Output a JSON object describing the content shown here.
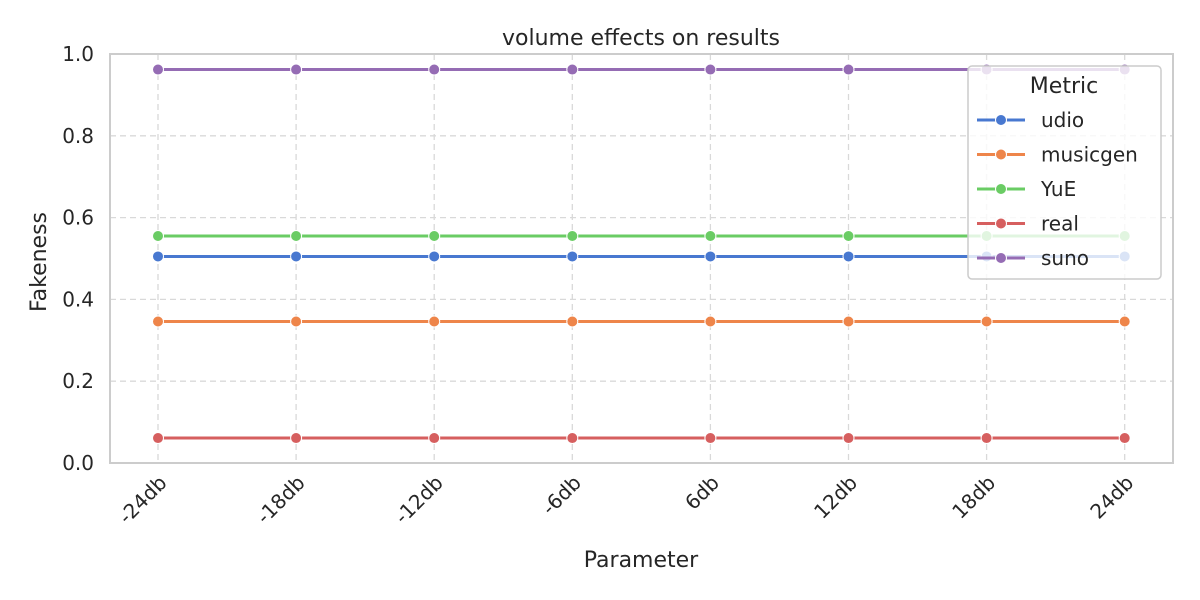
{
  "chart_data": {
    "type": "line",
    "title": "volume effects on results",
    "xlabel": "Parameter",
    "ylabel": "Fakeness",
    "categories": [
      "-24db",
      "-18db",
      "-12db",
      "-6db",
      "6db",
      "12db",
      "18db",
      "24db"
    ],
    "ylim": [
      0.0,
      1.0
    ],
    "yticks": [
      "0.0",
      "0.2",
      "0.4",
      "0.6",
      "0.8",
      "1.0"
    ],
    "grid": true,
    "legend_title": "Metric",
    "legend_position": "top-right",
    "series": [
      {
        "name": "udio",
        "color": "#4878d0",
        "values": [
          0.505,
          0.505,
          0.505,
          0.505,
          0.505,
          0.505,
          0.505,
          0.505
        ]
      },
      {
        "name": "musicgen",
        "color": "#ee854a",
        "values": [
          0.346,
          0.346,
          0.346,
          0.346,
          0.346,
          0.346,
          0.346,
          0.346
        ]
      },
      {
        "name": "YuE",
        "color": "#6acc64",
        "values": [
          0.555,
          0.555,
          0.555,
          0.555,
          0.555,
          0.555,
          0.555,
          0.555
        ]
      },
      {
        "name": "real",
        "color": "#d65f5f",
        "values": [
          0.061,
          0.061,
          0.061,
          0.061,
          0.061,
          0.061,
          0.061,
          0.061
        ]
      },
      {
        "name": "suno",
        "color": "#956cb4",
        "values": [
          0.962,
          0.962,
          0.962,
          0.962,
          0.962,
          0.962,
          0.962,
          0.962
        ]
      }
    ]
  }
}
